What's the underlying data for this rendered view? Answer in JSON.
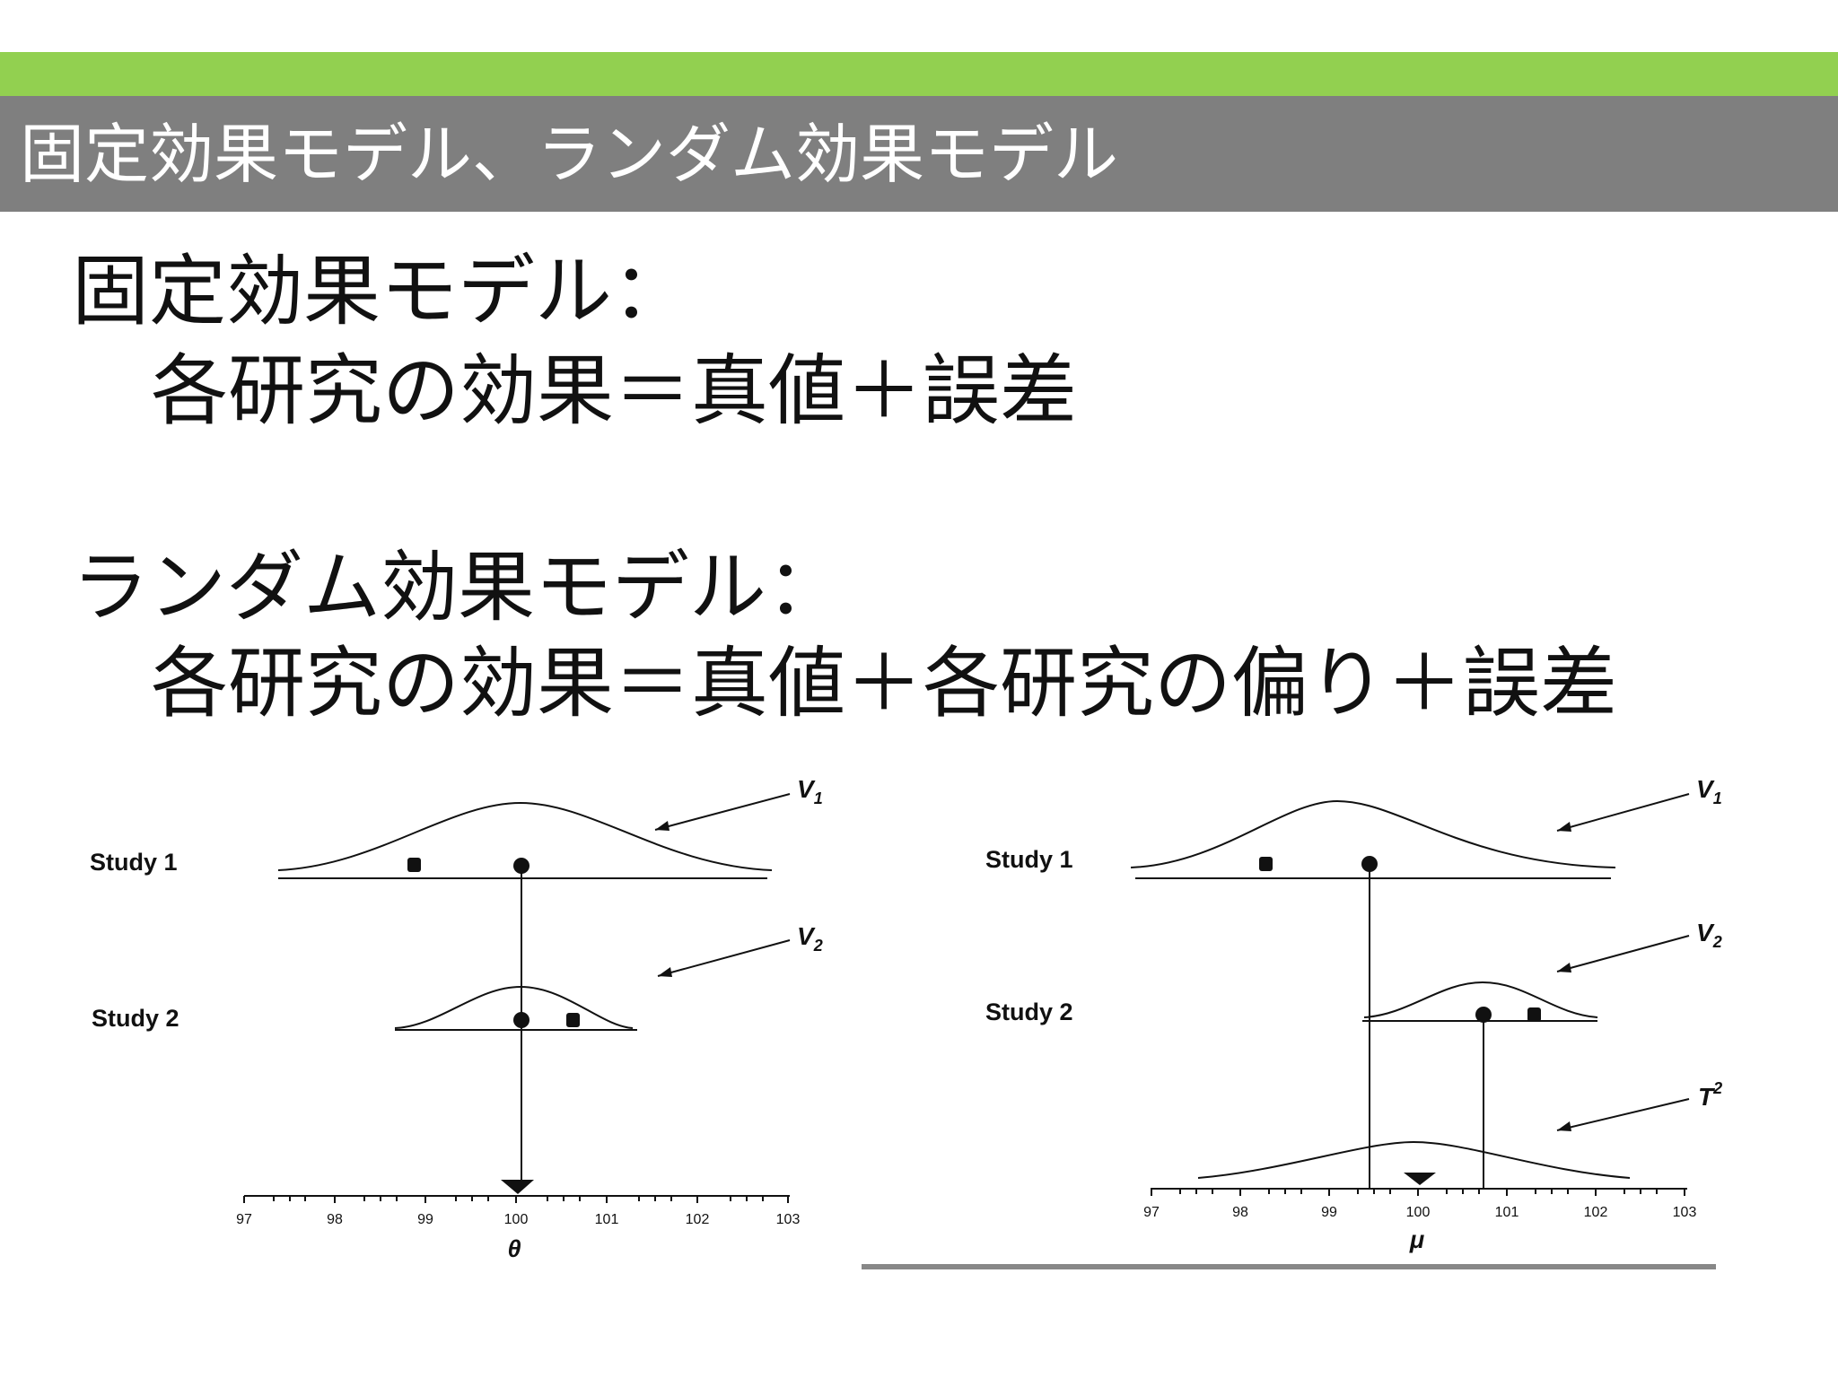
{
  "colors": {
    "accent_green": "#92d050",
    "title_bar": "#7f7f7f",
    "bottom_rule": "#888888"
  },
  "slide": {
    "title": "固定効果モデル、ランダム効果モデル",
    "fixed_heading": "固定効果モデル：",
    "fixed_formula": "各研究の効果＝真値＋誤差",
    "random_heading": "ランダム効果モデル：",
    "random_formula": "各研究の効果＝真値＋各研究の偏り＋誤差"
  },
  "figures": {
    "fixed": {
      "study1_label": "Study 1",
      "study2_label": "Study 2",
      "v1_label": "V",
      "v1_sub": "1",
      "v2_label": "V",
      "v2_sub": "2",
      "axis_ticks": [
        "97",
        "98",
        "99",
        "100",
        "101",
        "102",
        "103"
      ],
      "axis_label": "θ"
    },
    "random": {
      "study1_label": "Study 1",
      "study2_label": "Study 2",
      "v1_label": "V",
      "v1_sub": "1",
      "v2_label": "V",
      "v2_sub": "2",
      "t2_label": "T",
      "t2_sup": "2",
      "axis_ticks": [
        "97",
        "98",
        "99",
        "100",
        "101",
        "102",
        "103"
      ],
      "axis_label": "μ"
    }
  }
}
